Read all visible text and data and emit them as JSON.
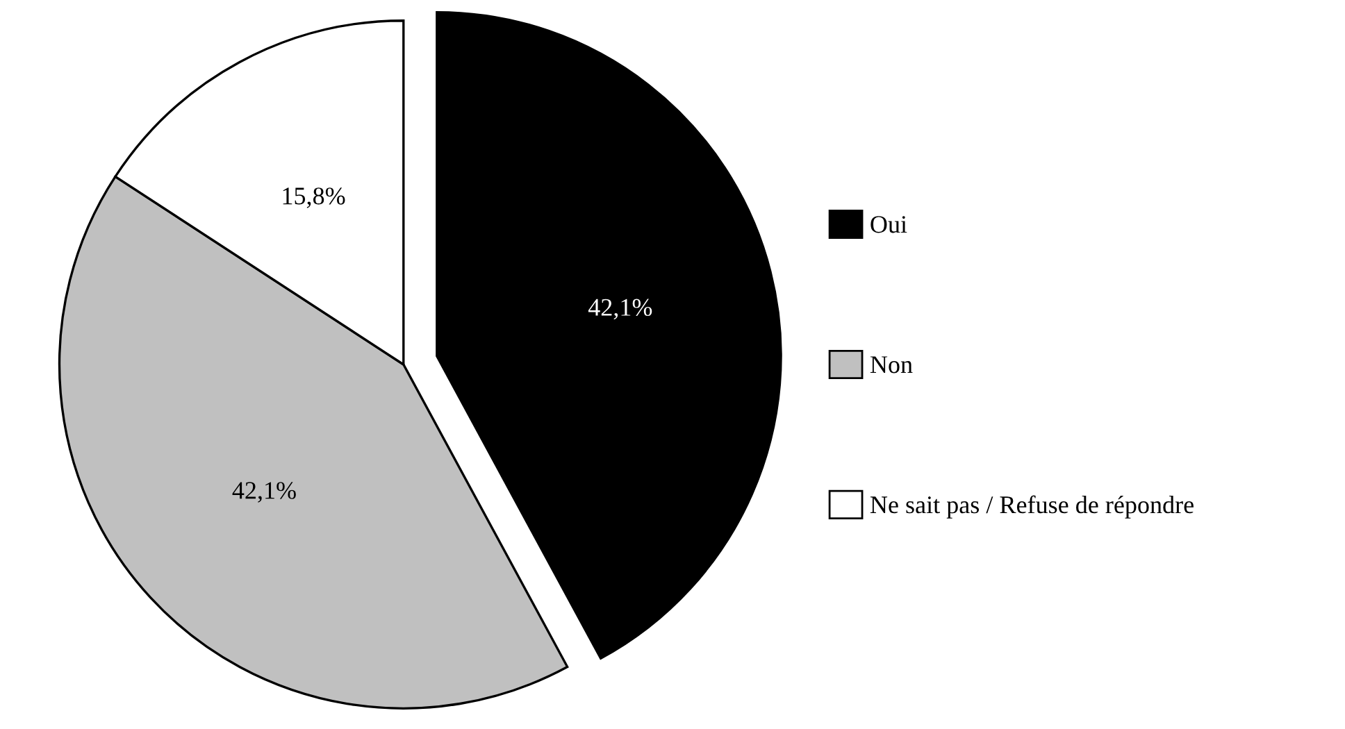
{
  "chart_data": {
    "type": "pie",
    "categories": [
      "Oui",
      "Non",
      "Ne sait pas / Refuse de répondre"
    ],
    "values": [
      42.1,
      42.1,
      15.8
    ],
    "colors": [
      "#000000",
      "#c0c0c0",
      "#ffffff"
    ],
    "value_labels": [
      "42,1%",
      "42,1%",
      "15,8%"
    ],
    "legend": "right"
  }
}
